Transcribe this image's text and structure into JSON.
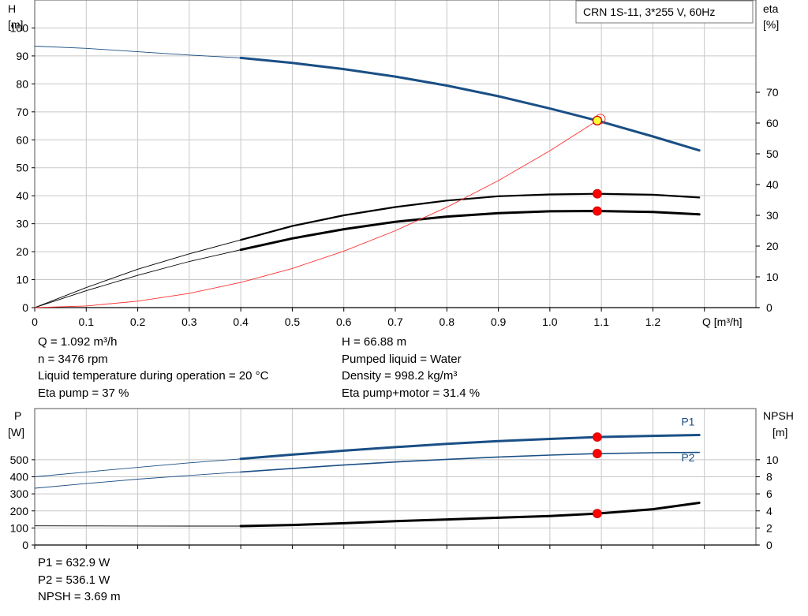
{
  "colors": {
    "curve_blue": "#1a4f85",
    "curve_black": "#000000",
    "eta_red": "#ff3030",
    "point_red": "#ff0000",
    "duty_yellow": "#ffff33",
    "grid": "#c8c8c8",
    "text": "#000000"
  },
  "info_top_left": [
    "Q = 1.092 m³/h",
    "n = 3476 rpm",
    "Liquid temperature during operation = 20 °C",
    "Eta pump = 37 %"
  ],
  "info_top_right": [
    "H = 66.88 m",
    "Pumped liquid = Water",
    "Density = 998.2 kg/m³",
    "Eta pump+motor = 31.4 %"
  ],
  "info_bottom": [
    "P1 = 632.9 W",
    "P2 = 536.1 W",
    "NPSH = 3.69 m"
  ],
  "chart_data": [
    {
      "type": "line",
      "legend_box": "CRN 1S-11, 3*255 V, 60Hz",
      "xlabel": "Q [m³/h]",
      "ylabel_left": [
        "H",
        "[m]"
      ],
      "ylabel_right": [
        "eta",
        "[%]"
      ],
      "xlim": [
        0,
        1.4
      ],
      "x_ticks": [
        0,
        0.1,
        0.2,
        0.3,
        0.4,
        0.5,
        0.6,
        0.7,
        0.8,
        0.9,
        1.0,
        1.1,
        1.2
      ],
      "x_tick_labels": [
        "0",
        "0.1",
        "0.2",
        "0.3",
        "0.4",
        "0.5",
        "0.6",
        "0.7",
        "0.8",
        "0.9",
        "1.0",
        "1.1",
        "1.2"
      ],
      "ylim_left": [
        0,
        110
      ],
      "y_ticks_left": [
        0,
        10,
        20,
        30,
        40,
        50,
        60,
        70,
        80,
        90,
        100
      ],
      "ylim_right": [
        0,
        100
      ],
      "y_ticks_right": [
        0,
        10,
        20,
        30,
        40,
        50,
        60,
        70
      ],
      "grid": true,
      "curves": [
        {
          "id": "h-curve",
          "axis": "left",
          "color": "curve_blue",
          "width": 3,
          "thin_until": 0.4,
          "x": [
            0,
            0.1,
            0.2,
            0.3,
            0.4,
            0.5,
            0.6,
            0.7,
            0.8,
            0.9,
            1.0,
            1.092,
            1.2,
            1.29
          ],
          "y": [
            93.5,
            92.7,
            91.5,
            90.3,
            89.3,
            87.5,
            85.3,
            82.6,
            79.4,
            75.6,
            71.2,
            66.88,
            61.2,
            56.2
          ]
        },
        {
          "id": "eta-pump-curve",
          "axis": "right",
          "color": "curve_black",
          "width": 2.2,
          "thin_until": 0.4,
          "x": [
            0,
            0.1,
            0.2,
            0.3,
            0.4,
            0.5,
            0.6,
            0.7,
            0.8,
            0.9,
            1.0,
            1.092,
            1.2,
            1.29
          ],
          "y": [
            0,
            6.5,
            12.5,
            17.5,
            22.0,
            26.5,
            30.0,
            32.7,
            34.8,
            36.2,
            36.8,
            37.0,
            36.7,
            35.8
          ]
        },
        {
          "id": "eta-total-curve",
          "axis": "right",
          "color": "curve_black",
          "width": 3,
          "thin_until": 0.4,
          "x": [
            0,
            0.1,
            0.2,
            0.3,
            0.4,
            0.5,
            0.6,
            0.7,
            0.8,
            0.9,
            1.0,
            1.092,
            1.2,
            1.29
          ],
          "y": [
            0,
            5.5,
            10.5,
            15.0,
            18.8,
            22.5,
            25.5,
            27.9,
            29.6,
            30.7,
            31.3,
            31.4,
            31.1,
            30.3
          ]
        },
        {
          "id": "system-curve",
          "axis": "left",
          "color": "eta_red",
          "width": 0.9,
          "thin_until": 0,
          "x": [
            0,
            0.1,
            0.2,
            0.3,
            0.4,
            0.5,
            0.6,
            0.7,
            0.8,
            0.9,
            1.0,
            1.092
          ],
          "y": [
            0,
            0.6,
            2.3,
            5.1,
            9.0,
            14.0,
            20.2,
            27.5,
            35.9,
            45.4,
            56.1,
            66.88
          ]
        }
      ],
      "duty_points": [
        {
          "id": "duty-point-h",
          "x": 1.092,
          "y": 66.88,
          "axis": "left",
          "style": "yellow"
        },
        {
          "id": "duty-point-eta-pump",
          "x": 1.092,
          "y": 37.0,
          "axis": "right",
          "style": "red"
        },
        {
          "id": "duty-point-eta-total",
          "x": 1.092,
          "y": 31.4,
          "axis": "right",
          "style": "red"
        }
      ]
    },
    {
      "type": "line",
      "ylabel_left": [
        "P",
        "[W]"
      ],
      "ylabel_right": [
        "NPSH",
        "[m]"
      ],
      "xlim": [
        0,
        1.4
      ],
      "ylim_left": [
        0,
        800
      ],
      "y_ticks_left": [
        0,
        100,
        200,
        300,
        400,
        500
      ],
      "ylim_right": [
        0,
        16
      ],
      "y_ticks_right": [
        0,
        2,
        4,
        6,
        8,
        10
      ],
      "grid": true,
      "curves": [
        {
          "id": "p1-curve",
          "axis": "left",
          "color": "curve_blue",
          "width": 3,
          "thin_until": 0.4,
          "label": "P1",
          "label_x": 1.255,
          "label_y": 700,
          "x": [
            0,
            0.1,
            0.2,
            0.3,
            0.4,
            0.5,
            0.6,
            0.7,
            0.8,
            0.9,
            1.0,
            1.092,
            1.2,
            1.29
          ],
          "y": [
            400,
            428,
            455,
            482,
            505,
            530,
            553,
            574,
            593,
            609,
            622,
            632.9,
            640,
            645
          ]
        },
        {
          "id": "p2-curve",
          "axis": "left",
          "color": "curve_blue",
          "width": 1.6,
          "thin_until": 0.4,
          "label": "P2",
          "label_x": 1.255,
          "label_y": 490,
          "x": [
            0,
            0.1,
            0.2,
            0.3,
            0.4,
            0.5,
            0.6,
            0.7,
            0.8,
            0.9,
            1.0,
            1.092,
            1.2,
            1.29
          ],
          "y": [
            333,
            360,
            386,
            408,
            428,
            449,
            469,
            487,
            502,
            516,
            527,
            536.1,
            541,
            543
          ]
        },
        {
          "id": "npsh-curve",
          "axis": "right",
          "color": "curve_black",
          "width": 3,
          "thin_until": 0.4,
          "x": [
            0,
            0.1,
            0.2,
            0.3,
            0.4,
            0.5,
            0.6,
            0.7,
            0.8,
            0.9,
            1.0,
            1.092,
            1.2,
            1.29
          ],
          "y": [
            2.25,
            2.24,
            2.23,
            2.22,
            2.22,
            2.35,
            2.55,
            2.8,
            3.0,
            3.2,
            3.4,
            3.69,
            4.2,
            4.95
          ]
        }
      ],
      "duty_points": [
        {
          "id": "duty-point-p1",
          "x": 1.092,
          "y": 632.9,
          "axis": "left",
          "style": "red"
        },
        {
          "id": "duty-point-p2",
          "x": 1.092,
          "y": 536.1,
          "axis": "left",
          "style": "red"
        },
        {
          "id": "duty-point-npsh",
          "x": 1.092,
          "y": 3.69,
          "axis": "right",
          "style": "red"
        }
      ]
    }
  ]
}
